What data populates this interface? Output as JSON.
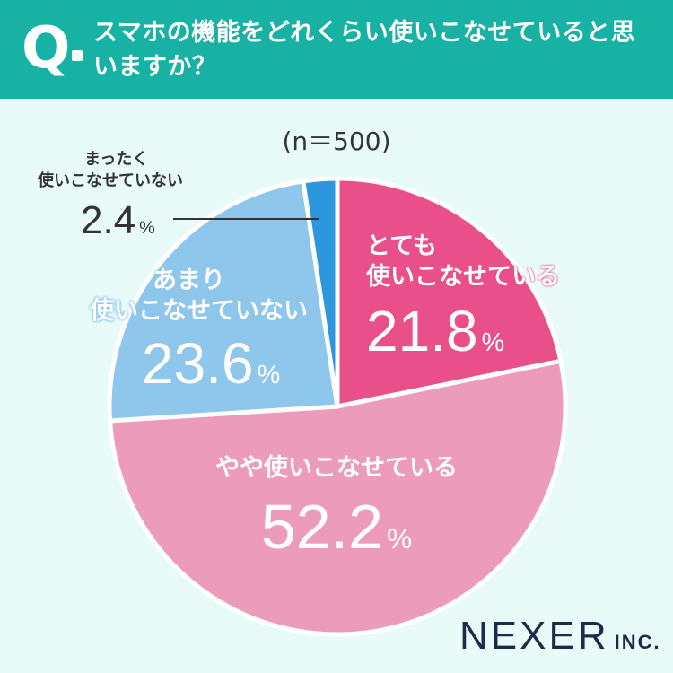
{
  "header": {
    "q_mark": "Q",
    "question": "スマホの機能をどれくらい使いこなせていると思いますか？"
  },
  "chart_data": {
    "type": "pie",
    "title": "スマホの機能をどれくらい使いこなせていると思いますか？",
    "sample_size_label": "(n＝500)",
    "start_angle": "12 o'clock",
    "direction": "clockwise",
    "slices": [
      {
        "key": "very",
        "label_lines": [
          "とても",
          "使いこなせている"
        ],
        "value": 21.8,
        "color": "#e9508a"
      },
      {
        "key": "some",
        "label_lines": [
          "やや使いこなせている"
        ],
        "value": 52.2,
        "color": "#ec9cba"
      },
      {
        "key": "notmuch",
        "label_lines": [
          "あまり",
          "使いこなせていない"
        ],
        "value": 23.6,
        "color": "#8fc6ec"
      },
      {
        "key": "notatall",
        "label_lines": [
          "まったく",
          "使いこなせていない"
        ],
        "value": 2.4,
        "color": "#2d97de"
      }
    ],
    "percent_sign": "%",
    "border_color": "#ffffff"
  },
  "labels": {
    "very": {
      "line1": "とても",
      "line2": "使いこなせている",
      "value": "21.8"
    },
    "some": {
      "line1": "やや使いこなせている",
      "value": "52.2"
    },
    "notmuch": {
      "line1": "あまり",
      "line2": "使いこなせていない",
      "value": "23.6"
    },
    "notatall": {
      "line1": "まったく",
      "line2": "使いこなせていない",
      "value": "2.4"
    },
    "pct": "%"
  },
  "brand": {
    "name": "NEXER",
    "suffix": "INC."
  }
}
